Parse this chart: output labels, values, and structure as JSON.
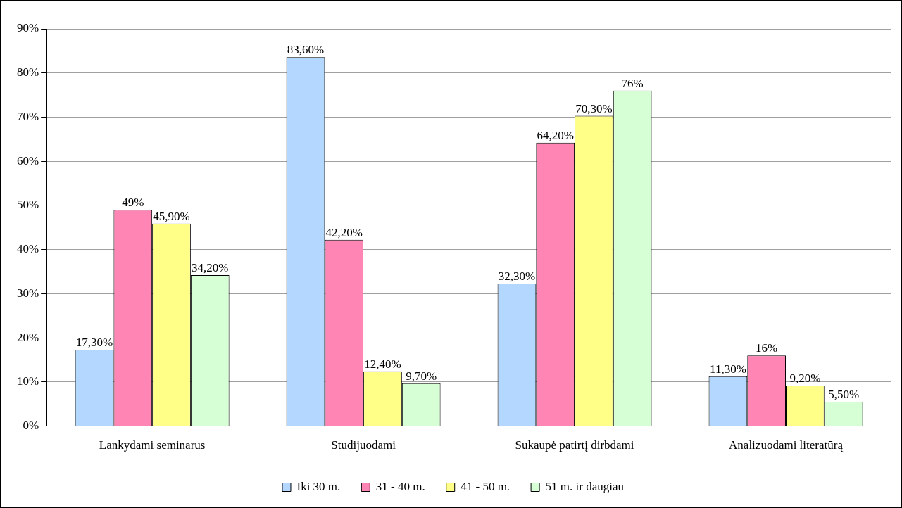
{
  "chart_data": {
    "type": "bar",
    "categories": [
      "Lankydami seminarus",
      "Studijuodami",
      "Sukaupė patirtį dirbdami",
      "Analizuodami literatūrą"
    ],
    "series": [
      {
        "name": "Iki 30 m.",
        "color": "#b3d7ff",
        "values": [
          17.3,
          83.6,
          32.3,
          11.3
        ],
        "value_labels": [
          "17,30%",
          "83,60%",
          "32,30%",
          "11,30%"
        ]
      },
      {
        "name": "31 - 40 m.",
        "color": "#ff85b4",
        "values": [
          49,
          42.2,
          64.2,
          16
        ],
        "value_labels": [
          "49%",
          "42,20%",
          "64,20%",
          "16%"
        ]
      },
      {
        "name": "41 - 50 m.",
        "color": "#ffff88",
        "values": [
          45.9,
          12.4,
          70.3,
          9.2
        ],
        "value_labels": [
          "45,90%",
          "12,40%",
          "70,30%",
          "9,20%"
        ]
      },
      {
        "name": "51 m. ir daugiau",
        "color": "#d6ffd6",
        "values": [
          34.2,
          9.7,
          76,
          5.5
        ],
        "value_labels": [
          "34,20%",
          "9,70%",
          "76%",
          "5,50%"
        ]
      }
    ],
    "ylim": [
      0,
      90
    ],
    "yticks": [
      {
        "value": 0,
        "label": "0%"
      },
      {
        "value": 10,
        "label": "10%"
      },
      {
        "value": 20,
        "label": "20%"
      },
      {
        "value": 30,
        "label": "30%"
      },
      {
        "value": 40,
        "label": "40%"
      },
      {
        "value": 50,
        "label": "50%"
      },
      {
        "value": 60,
        "label": "60%"
      },
      {
        "value": 70,
        "label": "70%"
      },
      {
        "value": 80,
        "label": "80%"
      },
      {
        "value": 90,
        "label": "90%"
      }
    ],
    "grid": "y",
    "legend": "bottom"
  }
}
